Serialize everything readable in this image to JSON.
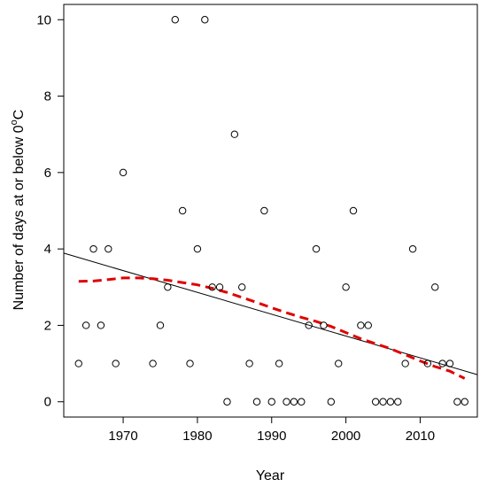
{
  "chart_data": {
    "type": "scatter",
    "title": "",
    "xlabel": "Year",
    "ylabel_main": "Number of days at or below 0",
    "ylabel_unit_sup": "o",
    "ylabel_unit": "C",
    "xlim": [
      1962.0,
      2017.7
    ],
    "ylim": [
      -0.4,
      10.4
    ],
    "x_ticks": [
      1970,
      1980,
      1990,
      2000,
      2010
    ],
    "y_ticks": [
      0,
      2,
      4,
      6,
      8,
      10
    ],
    "grid": false,
    "legend": "none",
    "points": [
      [
        1964,
        1
      ],
      [
        1965,
        2
      ],
      [
        1966,
        4
      ],
      [
        1967,
        2
      ],
      [
        1968,
        4
      ],
      [
        1969,
        1
      ],
      [
        1970,
        6
      ],
      [
        1974,
        1
      ],
      [
        1975,
        2
      ],
      [
        1976,
        3
      ],
      [
        1977,
        10
      ],
      [
        1978,
        5
      ],
      [
        1979,
        1
      ],
      [
        1980,
        4
      ],
      [
        1981,
        10
      ],
      [
        1982,
        3
      ],
      [
        1983,
        3
      ],
      [
        1984,
        0
      ],
      [
        1985,
        7
      ],
      [
        1986,
        3
      ],
      [
        1987,
        1
      ],
      [
        1988,
        0
      ],
      [
        1989,
        5
      ],
      [
        1990,
        0
      ],
      [
        1991,
        1
      ],
      [
        1992,
        0
      ],
      [
        1993,
        0
      ],
      [
        1994,
        0
      ],
      [
        1995,
        2
      ],
      [
        1996,
        4
      ],
      [
        1997,
        2
      ],
      [
        1998,
        0
      ],
      [
        1999,
        1
      ],
      [
        2000,
        3
      ],
      [
        2001,
        5
      ],
      [
        2002,
        2
      ],
      [
        2003,
        2
      ],
      [
        2004,
        0
      ],
      [
        2005,
        0
      ],
      [
        2006,
        0
      ],
      [
        2007,
        0
      ],
      [
        2008,
        1
      ],
      [
        2009,
        4
      ],
      [
        2011,
        1
      ],
      [
        2012,
        3
      ],
      [
        2013,
        1
      ],
      [
        2014,
        1
      ],
      [
        2015,
        0
      ],
      [
        2016,
        0
      ]
    ],
    "trend_line": {
      "x": [
        1962,
        2017.7
      ],
      "y": [
        3.89,
        0.71
      ],
      "color": "#000000",
      "style": "solid"
    },
    "smooth_curve": {
      "color": "#e00000",
      "style": "dashed",
      "x": [
        1964,
        1966,
        1968,
        1970,
        1972,
        1974,
        1976,
        1978,
        1980,
        1982,
        1984,
        1986,
        1988,
        1990,
        1992,
        1994,
        1996,
        1998,
        2000,
        2002,
        2004,
        2006,
        2008,
        2010,
        2012,
        2014,
        2016
      ],
      "y": [
        3.15,
        3.16,
        3.2,
        3.24,
        3.24,
        3.22,
        3.18,
        3.12,
        3.06,
        2.97,
        2.86,
        2.73,
        2.6,
        2.46,
        2.33,
        2.21,
        2.1,
        1.97,
        1.81,
        1.65,
        1.52,
        1.39,
        1.23,
        1.07,
        0.92,
        0.8,
        0.61
      ]
    }
  }
}
